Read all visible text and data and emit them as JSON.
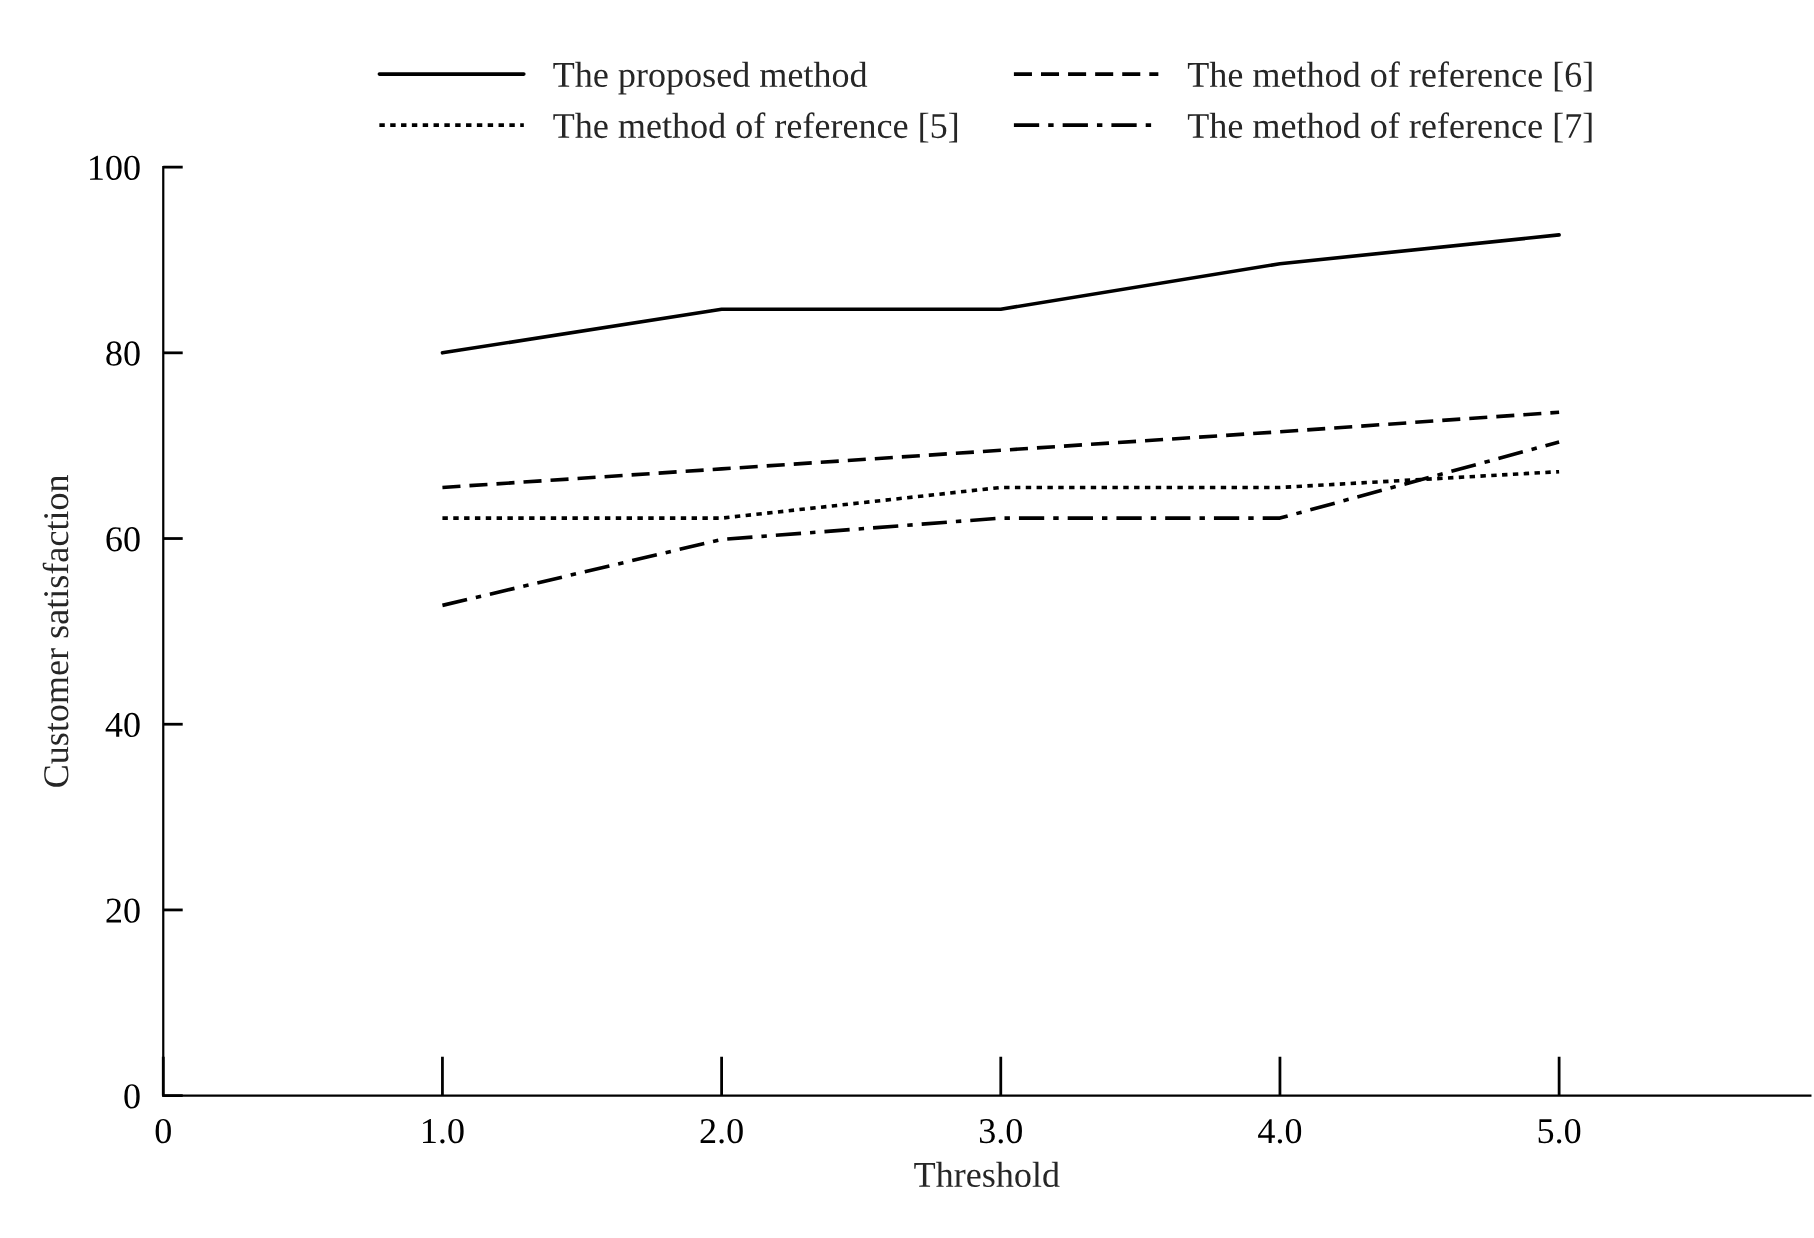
{
  "chart_data": {
    "type": "line",
    "xlabel": "Threshold",
    "ylabel": "Customer satisfaction",
    "x": [
      1.0,
      2.0,
      3.0,
      4.0,
      5.0
    ],
    "xlim": [
      0,
      5.9
    ],
    "xticks": [
      0,
      {
        "value": 1,
        "label": "1.0"
      },
      {
        "value": 2,
        "label": "2.0"
      },
      {
        "value": 3,
        "label": "3.0"
      },
      {
        "value": 4,
        "label": "4.0"
      },
      {
        "value": 5,
        "label": "5.0"
      }
    ],
    "ylim": [
      0,
      100
    ],
    "yticks": [
      0,
      20,
      40,
      60,
      80,
      100
    ],
    "grid": false,
    "legend": "top",
    "marker": "none",
    "series": [
      {
        "name": "The proposed method",
        "color": "#000000",
        "line_style": "solid",
        "values": [
          80.0,
          84.7,
          84.7,
          89.6,
          92.7
        ]
      },
      {
        "name": "The method of reference [6]",
        "color": "#000000",
        "line_style": "dashed",
        "values": [
          65.5,
          67.5,
          69.5,
          71.5,
          73.6
        ]
      },
      {
        "name": "The method of reference [5]",
        "color": "#000000",
        "line_style": "dotted",
        "values": [
          62.2,
          62.2,
          65.5,
          65.5,
          67.2
        ]
      },
      {
        "name": "The method of reference [7]",
        "color": "#000000",
        "line_style": "dashdot",
        "values": [
          52.8,
          59.9,
          62.2,
          62.2,
          70.4
        ]
      }
    ]
  }
}
